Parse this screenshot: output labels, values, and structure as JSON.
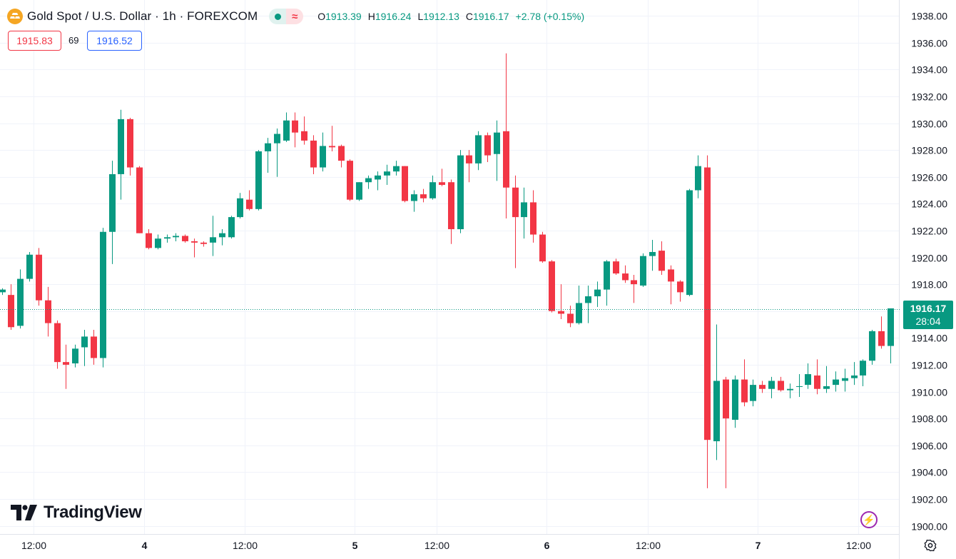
{
  "header": {
    "title": "Gold Spot / U.S. Dollar · 1h · FOREXCOM",
    "ohlc": [
      {
        "label": "O",
        "value": "1913.39"
      },
      {
        "label": "H",
        "value": "1916.24"
      },
      {
        "label": "L",
        "value": "1912.13"
      },
      {
        "label": "C",
        "value": "1916.17"
      }
    ],
    "change": "+2.78 (+0.15%)",
    "bid": "1915.83",
    "spread": "69",
    "ask": "1916.52"
  },
  "last_price": {
    "price": "1916.17",
    "countdown": "28:04"
  },
  "brand": "TradingView",
  "colors": {
    "up": "#089981",
    "down": "#f23645",
    "grid": "#f0f3fa",
    "text": "#131722"
  },
  "chart_data": {
    "type": "candlestick",
    "ylim": [
      1900,
      1938
    ],
    "y_ticks": [
      "1900.00",
      "1902.00",
      "1904.00",
      "1906.00",
      "1908.00",
      "1910.00",
      "1912.00",
      "1914.00",
      "1916.00",
      "1918.00",
      "1920.00",
      "1922.00",
      "1924.00",
      "1926.00",
      "1928.00",
      "1930.00",
      "1932.00",
      "1934.00",
      "1936.00",
      "1938.00"
    ],
    "x_ticks": [
      {
        "label": "12:00",
        "index": 3.5
      },
      {
        "label": "4",
        "index": 15.5
      },
      {
        "label": "12:00",
        "index": 26.5
      },
      {
        "label": "5",
        "index": 38.5
      },
      {
        "label": "12:00",
        "index": 47.5
      },
      {
        "label": "6",
        "index": 59.5
      },
      {
        "label": "12:00",
        "index": 70.5
      },
      {
        "label": "7",
        "index": 82.5
      },
      {
        "label": "12:00",
        "index": 93.5
      }
    ],
    "candles": [
      [
        1917.4,
        1917.7,
        1917.2,
        1917.6
      ],
      [
        1917.2,
        1918.0,
        1914.6,
        1914.8
      ],
      [
        1914.9,
        1919.1,
        1914.7,
        1918.4
      ],
      [
        1918.4,
        1920.4,
        1918.2,
        1920.2
      ],
      [
        1920.2,
        1920.7,
        1916.4,
        1916.8
      ],
      [
        1916.8,
        1917.8,
        1914.1,
        1915.1
      ],
      [
        1915.1,
        1915.3,
        1911.7,
        1912.2
      ],
      [
        1912.2,
        1913.5,
        1910.2,
        1912.0
      ],
      [
        1912.1,
        1913.5,
        1911.8,
        1913.2
      ],
      [
        1913.3,
        1914.6,
        1911.9,
        1914.1
      ],
      [
        1914.1,
        1914.6,
        1912.0,
        1912.5
      ],
      [
        1912.5,
        1922.2,
        1911.8,
        1921.9
      ],
      [
        1921.9,
        1927.2,
        1919.5,
        1926.2
      ],
      [
        1926.2,
        1931.0,
        1924.3,
        1930.3
      ],
      [
        1930.3,
        1930.4,
        1926.1,
        1926.7
      ],
      [
        1926.7,
        1926.8,
        1921.8,
        1921.8
      ],
      [
        1921.8,
        1922.1,
        1920.6,
        1920.7
      ],
      [
        1920.7,
        1921.7,
        1920.6,
        1921.4
      ],
      [
        1921.4,
        1921.7,
        1921.1,
        1921.5
      ],
      [
        1921.5,
        1921.8,
        1921.2,
        1921.6
      ],
      [
        1921.6,
        1921.7,
        1921.1,
        1921.2
      ],
      [
        1921.2,
        1921.4,
        1920.0,
        1921.1
      ],
      [
        1921.1,
        1921.2,
        1920.8,
        1921.0
      ],
      [
        1921.1,
        1923.1,
        1920.1,
        1921.5
      ],
      [
        1921.5,
        1922.1,
        1920.9,
        1921.8
      ],
      [
        1921.5,
        1923.1,
        1921.4,
        1923.0
      ],
      [
        1923.0,
        1924.8,
        1922.9,
        1924.4
      ],
      [
        1924.3,
        1925.0,
        1923.5,
        1923.6
      ],
      [
        1923.6,
        1928.0,
        1923.5,
        1927.9
      ],
      [
        1927.9,
        1928.9,
        1926.3,
        1928.5
      ],
      [
        1928.5,
        1929.6,
        1926.0,
        1929.2
      ],
      [
        1928.7,
        1930.8,
        1928.6,
        1930.2
      ],
      [
        1930.2,
        1930.8,
        1928.2,
        1929.3
      ],
      [
        1929.4,
        1930.5,
        1928.4,
        1928.7
      ],
      [
        1928.7,
        1929.1,
        1926.2,
        1926.7
      ],
      [
        1926.7,
        1929.3,
        1926.4,
        1928.3
      ],
      [
        1928.3,
        1929.8,
        1927.9,
        1928.2
      ],
      [
        1928.3,
        1928.4,
        1926.7,
        1927.2
      ],
      [
        1927.2,
        1927.3,
        1924.2,
        1924.3
      ],
      [
        1924.3,
        1925.6,
        1924.2,
        1925.6
      ],
      [
        1925.6,
        1926.1,
        1925.1,
        1925.9
      ],
      [
        1925.8,
        1926.4,
        1925.0,
        1926.1
      ],
      [
        1926.1,
        1926.9,
        1925.4,
        1926.4
      ],
      [
        1926.4,
        1927.2,
        1926.1,
        1926.8
      ],
      [
        1926.8,
        1926.8,
        1924.1,
        1924.2
      ],
      [
        1924.2,
        1925.0,
        1923.4,
        1924.7
      ],
      [
        1924.7,
        1925.1,
        1924.1,
        1924.4
      ],
      [
        1924.4,
        1926.1,
        1924.3,
        1925.6
      ],
      [
        1925.6,
        1926.6,
        1925.3,
        1925.4
      ],
      [
        1925.6,
        1925.8,
        1921.0,
        1922.1
      ],
      [
        1922.1,
        1928.0,
        1921.8,
        1927.6
      ],
      [
        1927.6,
        1928.0,
        1925.6,
        1927.0
      ],
      [
        1927.0,
        1929.4,
        1926.5,
        1929.1
      ],
      [
        1929.1,
        1929.3,
        1927.1,
        1927.6
      ],
      [
        1927.7,
        1930.2,
        1925.7,
        1929.3
      ],
      [
        1929.4,
        1935.2,
        1922.9,
        1925.2
      ],
      [
        1925.2,
        1926.1,
        1919.2,
        1923.0
      ],
      [
        1923.0,
        1925.2,
        1921.4,
        1924.1
      ],
      [
        1924.1,
        1925.0,
        1921.1,
        1921.7
      ],
      [
        1921.7,
        1921.9,
        1919.6,
        1919.7
      ],
      [
        1919.7,
        1919.8,
        1915.9,
        1916.0
      ],
      [
        1916.0,
        1918.0,
        1915.4,
        1915.8
      ],
      [
        1915.8,
        1916.4,
        1914.8,
        1915.1
      ],
      [
        1915.1,
        1917.9,
        1915.0,
        1916.6
      ],
      [
        1916.6,
        1917.9,
        1915.1,
        1917.1
      ],
      [
        1917.1,
        1918.2,
        1916.3,
        1917.6
      ],
      [
        1917.6,
        1919.8,
        1916.4,
        1919.7
      ],
      [
        1919.7,
        1919.9,
        1918.7,
        1918.8
      ],
      [
        1918.8,
        1919.4,
        1918.1,
        1918.3
      ],
      [
        1918.3,
        1918.7,
        1916.6,
        1918.0
      ],
      [
        1917.9,
        1920.3,
        1917.8,
        1920.1
      ],
      [
        1920.1,
        1921.3,
        1919.0,
        1920.4
      ],
      [
        1920.5,
        1921.2,
        1918.7,
        1919.0
      ],
      [
        1919.1,
        1919.4,
        1916.5,
        1918.2
      ],
      [
        1918.2,
        1918.3,
        1916.7,
        1917.4
      ],
      [
        1917.2,
        1925.1,
        1917.1,
        1925.0
      ],
      [
        1925.0,
        1927.6,
        1924.4,
        1926.8
      ],
      [
        1926.7,
        1927.6,
        1902.8,
        1906.4
      ],
      [
        1906.3,
        1915.0,
        1904.9,
        1910.8
      ],
      [
        1910.9,
        1911.1,
        1902.8,
        1908.0
      ],
      [
        1907.9,
        1911.2,
        1907.3,
        1910.9
      ],
      [
        1910.9,
        1912.4,
        1908.9,
        1909.2
      ],
      [
        1909.3,
        1910.9,
        1908.9,
        1910.5
      ],
      [
        1910.5,
        1910.8,
        1909.9,
        1910.2
      ],
      [
        1910.2,
        1911.1,
        1909.5,
        1910.8
      ],
      [
        1910.8,
        1911.1,
        1910.0,
        1910.1
      ],
      [
        1910.1,
        1910.6,
        1909.5,
        1910.2
      ],
      [
        1910.4,
        1911.3,
        1909.6,
        1910.4
      ],
      [
        1910.5,
        1912.1,
        1910.2,
        1911.3
      ],
      [
        1911.2,
        1912.4,
        1909.8,
        1910.2
      ],
      [
        1910.2,
        1911.9,
        1909.9,
        1910.4
      ],
      [
        1910.5,
        1911.5,
        1910.0,
        1910.9
      ],
      [
        1910.8,
        1911.7,
        1910.0,
        1911.0
      ],
      [
        1911.0,
        1912.2,
        1910.5,
        1911.2
      ],
      [
        1911.2,
        1912.4,
        1910.4,
        1912.3
      ],
      [
        1912.3,
        1914.6,
        1912.0,
        1914.5
      ],
      [
        1914.5,
        1915.6,
        1913.2,
        1913.4
      ],
      [
        1913.4,
        1916.2,
        1912.1,
        1916.2
      ]
    ]
  }
}
